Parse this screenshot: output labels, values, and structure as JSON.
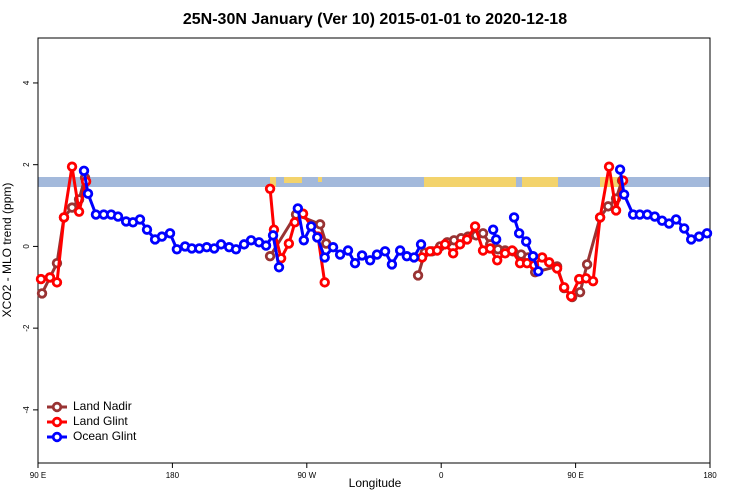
{
  "chart_data": {
    "type": "line",
    "title": "25N-30N January (Ver 10)   2015-01-01 to 2020-12-18",
    "x_label": "Longitude",
    "y_label": "XCO2 - MLO trend (ppm)",
    "xlim": [
      90,
      540
    ],
    "ylim": [
      -5.3,
      5.1
    ],
    "xticks": [
      {
        "value": 90,
        "label": "90 E"
      },
      {
        "value": 180,
        "label": "180"
      },
      {
        "value": 270,
        "label": "90 W"
      },
      {
        "value": 360,
        "label": "0"
      },
      {
        "value": 450,
        "label": "90 E"
      },
      {
        "value": 540,
        "label": "180"
      }
    ],
    "yticks": [
      -4,
      -2,
      0,
      2,
      4
    ],
    "legend": "bottom-left",
    "series": [
      {
        "name": "Land Nadir",
        "color": "#993333",
        "x": [
          92.7,
          98,
          102.7,
          107.4,
          112.8,
          117.5,
          121.5,
          null,
          245.4,
          262.8,
          278.9,
          283,
          null,
          344.5,
          349,
          353.9,
          359.3,
          364,
          368.6,
          373.3,
          378,
          383.4,
          388,
          392.8,
          398,
          402.8,
          408,
          413.5,
          418.2,
          422.9,
          437.6,
          442.3,
          447.7,
          453,
          457.7,
          466.4,
          471.8,
          477.1,
          481.1
        ],
        "values": [
          -1.15,
          -0.76,
          -0.41,
          0.71,
          0.95,
          1.15,
          1.68,
          null,
          -0.24,
          0.78,
          0.54,
          0.07,
          null,
          -0.71,
          -0.15,
          -0.12,
          0,
          0.1,
          0.15,
          0.2,
          0.24,
          0.27,
          0.32,
          0.05,
          -0.07,
          -0.1,
          -0.12,
          -0.2,
          -0.27,
          -0.63,
          -0.49,
          -1.02,
          -1.24,
          -1.12,
          -0.44,
          0.71,
          0.98,
          1.17,
          1.61
        ]
      },
      {
        "name": "Land Glint",
        "color": "#ff0000",
        "x": [
          92,
          98,
          102.7,
          107.4,
          112.8,
          117.5,
          122.2,
          null,
          245.4,
          248,
          252.8,
          258,
          262,
          267.5,
          277.5,
          282,
          null,
          347.2,
          352.5,
          357.3,
          362.6,
          368,
          372.6,
          377.3,
          382.7,
          388,
          392.8,
          397.5,
          402.8,
          407.5,
          412.8,
          417.5,
          422.2,
          427.6,
          432.3,
          437.6,
          442.3,
          447,
          452.4,
          457,
          461.7,
          466.4,
          472.4,
          477.1,
          481.8
        ],
        "values": [
          -0.8,
          -0.76,
          -0.88,
          0.71,
          1.95,
          0.85,
          1.59,
          null,
          1.41,
          0.41,
          -0.29,
          0.07,
          0.59,
          0.8,
          0.24,
          -0.88,
          null,
          -0.27,
          -0.12,
          -0.1,
          0.05,
          -0.17,
          0.05,
          0.17,
          0.49,
          -0.1,
          -0.05,
          -0.34,
          -0.17,
          -0.1,
          -0.41,
          -0.41,
          -0.46,
          -0.27,
          -0.39,
          -0.54,
          -1.0,
          -1.22,
          -0.8,
          -0.78,
          -0.85,
          0.71,
          1.95,
          0.88,
          1.61
        ]
      },
      {
        "name": "Ocean Glint",
        "color": "#0000ff",
        "x": [
          120.8,
          123.5,
          128.8,
          134,
          139,
          143.6,
          149,
          153.6,
          158.3,
          163,
          168.4,
          173,
          178.4,
          183,
          188.5,
          193,
          198,
          203,
          208,
          212.6,
          218,
          222.6,
          228,
          232.7,
          238,
          242.7,
          247.4,
          251.4,
          null,
          264,
          268,
          272.9,
          277,
          282,
          287.6,
          292.3,
          297.6,
          302.3,
          307,
          312.4,
          317,
          322.4,
          327,
          332.5,
          337,
          341.8,
          346.5,
          null,
          394.8,
          396.8,
          null,
          408.8,
          412.2,
          416.9,
          421.5,
          425,
          null,
          479.8,
          482.5,
          488.5,
          493,
          498,
          503,
          507.9,
          512.6,
          517.3,
          522.7,
          527.4,
          532.7,
          538
        ],
        "values": [
          1.85,
          1.29,
          0.78,
          0.78,
          0.78,
          0.73,
          0.61,
          0.59,
          0.66,
          0.41,
          0.17,
          0.24,
          0.32,
          -0.07,
          0,
          -0.05,
          -0.05,
          -0.02,
          -0.05,
          0.05,
          -0.02,
          -0.07,
          0.05,
          0.15,
          0.1,
          0.02,
          0.27,
          -0.51,
          null,
          0.93,
          0.15,
          0.49,
          0.22,
          -0.27,
          -0.02,
          -0.2,
          -0.1,
          -0.41,
          -0.22,
          -0.34,
          -0.2,
          -0.12,
          -0.44,
          -0.1,
          -0.24,
          -0.27,
          0.05,
          null,
          0.41,
          0.17,
          null,
          0.71,
          0.32,
          0.12,
          -0.24,
          -0.61,
          null,
          1.88,
          1.27,
          0.78,
          0.78,
          0.78,
          0.73,
          0.63,
          0.56,
          0.66,
          0.44,
          0.17,
          0.24,
          0.32
        ]
      }
    ]
  }
}
